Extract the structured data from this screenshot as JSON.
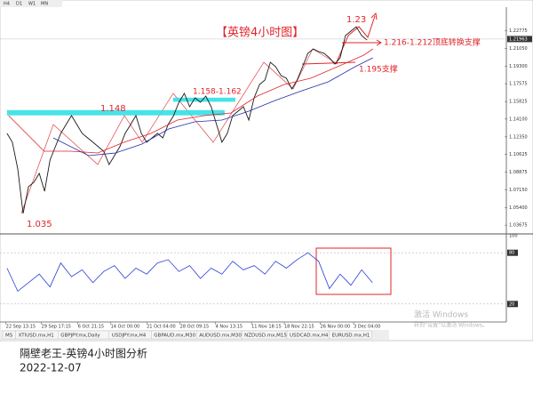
{
  "top_tabs": [
    "H4",
    "D1",
    "W1",
    "MN"
  ],
  "chart_data": [
    {
      "type": "line",
      "xlim": [
        -1.3,
        92.6
      ],
      "ylim": [
        1.029,
        1.251
      ],
      "yticks": [
        {
          "value": 1.22775,
          "label": "1.22775"
        },
        {
          "value": 1.2105,
          "label": "1.21050"
        },
        {
          "value": 1.193,
          "label": "1.19300"
        },
        {
          "value": 1.17575,
          "label": "1.17575"
        },
        {
          "value": 1.15825,
          "label": "1.15825"
        },
        {
          "value": 1.141,
          "label": "1.14100"
        },
        {
          "value": 1.1235,
          "label": "1.12350"
        },
        {
          "value": 1.10625,
          "label": "1.10625"
        },
        {
          "value": 1.08875,
          "label": "1.08875"
        },
        {
          "value": 1.0715,
          "label": "1.07150"
        },
        {
          "value": 1.054,
          "label": "1.05400"
        },
        {
          "value": 1.03675,
          "label": "1.03675"
        }
      ],
      "last_price": 1.21963,
      "series": [
        {
          "color": "#1a1a1a",
          "values": [
            1.1269,
            1.1182,
            1.0919,
            1.0482,
            1.0745,
            1.0788,
            1.0876,
            1.0701,
            1.1007,
            1.1138,
            1.1269,
            1.1356,
            1.1444,
            1.1356,
            1.1269,
            1.1225,
            1.1182,
            1.1138,
            1.1094,
            1.0963,
            1.105,
            1.1138,
            1.1269,
            1.1356,
            1.1444,
            1.1269,
            1.1182,
            1.1225,
            1.1269,
            1.1225,
            1.1356,
            1.1444,
            1.1575,
            1.1662,
            1.1531,
            1.1619,
            1.1575,
            1.1636,
            1.1531,
            1.1356,
            1.1182,
            1.1269,
            1.1444,
            1.1487,
            1.1531,
            1.14,
            1.1619,
            1.175,
            1.1793,
            1.1968,
            1.1924,
            1.1837,
            1.1811,
            1.1706,
            1.1793,
            1.1924,
            1.2056,
            1.2099,
            1.2073,
            1.2056,
            1.2012,
            1.1951,
            1.2012,
            1.223,
            1.2274,
            1.2318,
            1.223,
            1.2187
          ]
        },
        {
          "color": "#e0242a",
          "x": [
            0.3,
            6.9,
            11.9,
            16.9,
            21.8,
            26.8,
            31.7,
            36.7,
            41.7,
            46.6,
            51.6,
            56.5,
            61.5,
            66.4,
            68.1
          ],
          "values": [
            1.1444,
            1.1094,
            1.1094,
            1.1077,
            1.1182,
            1.1269,
            1.14,
            1.1444,
            1.147,
            1.1636,
            1.175,
            1.1811,
            1.1924,
            1.2038,
            1.2099
          ]
        },
        {
          "color": "#1f2fa8",
          "x": [
            8.6,
            15.2,
            20.2,
            25.1,
            30.1,
            35.0,
            40.0,
            45.0,
            49.9,
            54.9,
            59.8,
            64.8,
            68.1
          ],
          "values": [
            1.1225,
            1.105,
            1.1077,
            1.1164,
            1.1313,
            1.1383,
            1.14,
            1.1487,
            1.1592,
            1.1688,
            1.1776,
            1.1924,
            1.2012
          ]
        }
      ],
      "bands": [
        {
          "x": [
            0,
            40.5
          ],
          "y": [
            1.1446,
            1.1498
          ],
          "color": "#33e0e6"
        },
        {
          "x": [
            30.9,
            42.5
          ],
          "y": [
            1.158,
            1.162
          ],
          "color": "#33e0e6"
        }
      ],
      "annotations": [
        "【英镑4小时图】",
        "1.23",
        "1.216-1.212顶底转换支撑",
        "1.195支撑",
        "1.158-1.162",
        "1.148",
        "1.035"
      ]
    },
    {
      "type": "line",
      "xlim": [
        -1.3,
        92.6
      ],
      "ylim": [
        0,
        100
      ],
      "yticks": [
        100,
        80,
        20
      ],
      "xticks": [
        {
          "value": -0.2,
          "label": "22 Sep 13:15"
        },
        {
          "value": 6.4,
          "label": "29 Sep 17:15"
        },
        {
          "value": 13.2,
          "label": "6 Oct 21:15"
        },
        {
          "value": 19.3,
          "label": "14 Oct 00:00"
        },
        {
          "value": 26,
          "label": "21 Oct 04:00"
        },
        {
          "value": 32.2,
          "label": "28 Oct 09:15"
        },
        {
          "value": 38.8,
          "label": "4 Nov 13:15"
        },
        {
          "value": 45.5,
          "label": "11 Nov 18:15"
        },
        {
          "value": 51.6,
          "label": "18 Nov 22:15"
        },
        {
          "value": 58.3,
          "label": "26 Nov 00:00"
        },
        {
          "value": 64.5,
          "label": "3 Dec 04:00"
        }
      ],
      "series": [
        {
          "color": "#2b3fd6",
          "x": [
            0,
            2,
            4,
            6,
            8,
            10,
            12,
            14,
            16,
            18,
            20,
            22,
            24,
            26,
            28,
            30,
            32,
            34,
            36,
            38,
            40,
            42,
            44,
            46,
            48,
            50,
            52,
            54,
            56,
            58,
            60,
            62,
            64,
            66,
            68
          ],
          "values": [
            62,
            35,
            45,
            55,
            40,
            68,
            52,
            60,
            45,
            58,
            65,
            50,
            62,
            55,
            68,
            72,
            58,
            65,
            50,
            62,
            55,
            70,
            60,
            65,
            55,
            70,
            62,
            72,
            80,
            70,
            38,
            55,
            42,
            60,
            45
          ]
        }
      ]
    }
  ],
  "symbol_tabs": [
    "MS",
    "XTIUSD.mx,H1",
    "GBPJPY.mx,Daily",
    "USDJPY.mx,H4",
    "GBPAUD.mx,M30",
    "AUDUSD.mx,M30",
    "NZDUSD.mx,M15",
    "USDCAD.mx,H4",
    "EURUSD.mx,H1"
  ],
  "watermark": {
    "title": "激活 Windows",
    "subtitle": "转到“设置”以激活 Windows。"
  },
  "caption": {
    "title": "隔壁老王-英镑4小时图分析",
    "date": "2022-12-07"
  }
}
